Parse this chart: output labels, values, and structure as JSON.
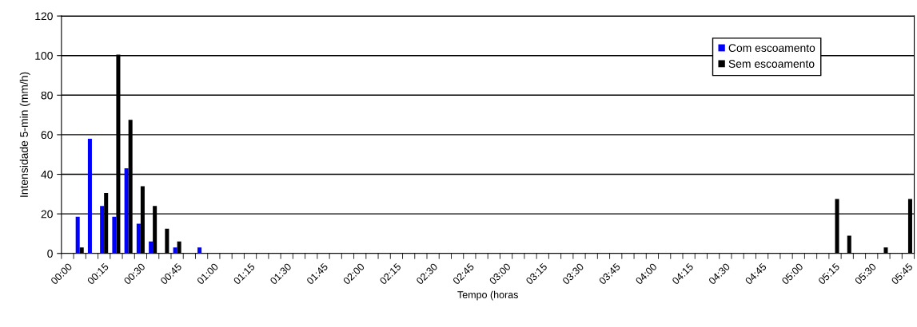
{
  "chart_data": {
    "type": "bar",
    "xlabel": "Tempo (horas",
    "ylabel": "Intensidade 5-min (mm/h)",
    "categories": [
      "00:00",
      null,
      null,
      "00:15",
      null,
      null,
      "00:30",
      null,
      null,
      "00:45",
      null,
      null,
      "01:00",
      null,
      null,
      "01:15",
      null,
      null,
      "01:30",
      null,
      null,
      "01:45",
      null,
      null,
      "02:00",
      null,
      null,
      "02:15",
      null,
      null,
      "02:30",
      null,
      null,
      "02:45",
      null,
      null,
      "03:00",
      null,
      null,
      "03:15",
      null,
      null,
      "03:30",
      null,
      null,
      "03:45",
      null,
      null,
      "04:00",
      null,
      null,
      "04:15",
      null,
      null,
      "04:30",
      null,
      null,
      "04:45",
      null,
      null,
      "05:00",
      null,
      null,
      "05:15",
      null,
      null,
      "05:30",
      null,
      null,
      "05:45"
    ],
    "series": [
      {
        "name": "Com escoamento",
        "color": "#0000ff",
        "values": [
          0,
          18.5,
          58,
          24,
          18.5,
          43,
          15,
          6,
          0,
          3,
          0,
          3,
          0,
          0,
          0,
          0,
          0,
          0,
          0,
          0,
          0,
          0,
          0,
          0,
          0,
          0,
          0,
          0,
          0,
          0,
          0,
          0,
          0,
          0,
          0,
          0,
          0,
          0,
          0,
          0,
          0,
          0,
          0,
          0,
          0,
          0,
          0,
          0,
          0,
          0,
          0,
          0,
          0,
          0,
          0,
          0,
          0,
          0,
          0,
          0,
          0,
          0,
          0,
          0,
          0,
          0,
          0,
          0,
          0,
          0
        ]
      },
      {
        "name": "Sem escoamento",
        "color": "#000000",
        "values": [
          0,
          3,
          0,
          30.5,
          100.5,
          67.5,
          34,
          24,
          12.5,
          6,
          0,
          0,
          0,
          0,
          0,
          0,
          0,
          0,
          0,
          0,
          0,
          0,
          0,
          0,
          0,
          0,
          0,
          0,
          0,
          0,
          0,
          0,
          0,
          0,
          0,
          0,
          0,
          0,
          0,
          0,
          0,
          0,
          0,
          0,
          0,
          0,
          0,
          0,
          0,
          0,
          0,
          0,
          0,
          0,
          0,
          0,
          0,
          0,
          0,
          0,
          0,
          0,
          0,
          27.5,
          9,
          0,
          0,
          3,
          0,
          27.5
        ]
      }
    ],
    "ylim": [
      0,
      120
    ],
    "yticks": [
      0,
      20,
      40,
      60,
      80,
      100,
      120
    ],
    "grid": "y",
    "legend": "top right"
  }
}
